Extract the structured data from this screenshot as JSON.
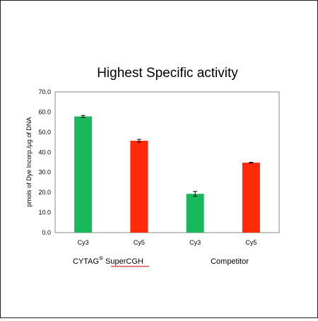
{
  "chart_data": {
    "type": "bar",
    "title": "Highest Specific activity",
    "ylabel": "pmols of Dye Incorp./µg of DNA",
    "xlabel": "",
    "ylim": [
      0,
      70
    ],
    "yticks": [
      0,
      10,
      20,
      30,
      40,
      50,
      60,
      70
    ],
    "ytick_labels": [
      "0.0",
      "10.0",
      "20.0",
      "30.0",
      "40.0",
      "50.0",
      "60.0",
      "70.0"
    ],
    "categories": [
      "Cy3",
      "Cy5",
      "Cy3",
      "Cy5"
    ],
    "values": [
      57.8,
      45.7,
      19.3,
      34.8
    ],
    "errors": [
      0.5,
      0.7,
      1.2,
      0.2
    ],
    "bar_colors": [
      "#1ab85c",
      "#ff2a0a",
      "#1ab85c",
      "#ff2a0a"
    ],
    "groups": [
      {
        "label": "CYTAG",
        "superscript": "®",
        "suffix": " SuperCGH",
        "categories": [
          0,
          1
        ]
      },
      {
        "label": "Competitor",
        "superscript": "",
        "suffix": "",
        "categories": [
          2,
          3
        ]
      }
    ],
    "grid": false,
    "legend": "none"
  },
  "colors": {
    "plot_border": "#8a8a8a",
    "spellcheck_underline": "#e02020"
  }
}
